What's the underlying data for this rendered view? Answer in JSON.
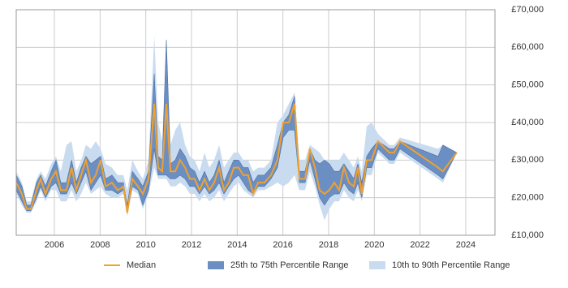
{
  "chart_data": {
    "type": "band-line",
    "x": [
      2004.33,
      2004.58,
      2004.79,
      2004.97,
      2005.22,
      2005.4,
      2005.61,
      2005.86,
      2006.07,
      2006.28,
      2006.53,
      2006.75,
      2006.96,
      2007.17,
      2007.38,
      2007.6,
      2007.81,
      2008.02,
      2008.24,
      2008.52,
      2008.77,
      2009.02,
      2009.19,
      2009.41,
      2009.66,
      2009.87,
      2010.12,
      2010.37,
      2010.54,
      2010.72,
      2010.9,
      2011.08,
      2011.29,
      2011.5,
      2011.72,
      2011.93,
      2012.14,
      2012.35,
      2012.57,
      2012.78,
      2012.99,
      2013.21,
      2013.42,
      2013.63,
      2013.85,
      2014.06,
      2014.27,
      2014.48,
      2014.7,
      2014.91,
      2015.19,
      2015.48,
      2015.76,
      2016.01,
      2016.26,
      2016.51,
      2016.72,
      2016.97,
      2017.18,
      2017.4,
      2017.61,
      2017.82,
      2018.03,
      2018.25,
      2018.46,
      2018.67,
      2018.89,
      2019.1,
      2019.28,
      2019.45,
      2019.67,
      2019.88,
      2020.16,
      2020.66,
      2020.87,
      2021.12,
      2022.79,
      2023.0,
      2023.61
    ],
    "series": [
      {
        "name": "Median",
        "color": "#f0a030",
        "values": [
          24000,
          21000,
          17000,
          17000,
          22000,
          25000,
          21000,
          25000,
          27000,
          22000,
          22000,
          28000,
          22000,
          26000,
          30000,
          24000,
          26000,
          30000,
          23000,
          24000,
          22000,
          23000,
          16000,
          25000,
          23000,
          21000,
          25000,
          45000,
          28000,
          27000,
          45000,
          27000,
          27000,
          30000,
          28000,
          25000,
          25000,
          22000,
          25000,
          22000,
          24000,
          28000,
          22000,
          24000,
          28000,
          28000,
          26000,
          26000,
          21000,
          24000,
          24000,
          26000,
          30000,
          40000,
          40000,
          45000,
          25000,
          25000,
          33000,
          28000,
          22000,
          21000,
          22000,
          24000,
          22000,
          28000,
          24000,
          23000,
          28000,
          21000,
          30000,
          30000,
          35000,
          32000,
          32000,
          35000,
          28000,
          27000,
          32000
        ]
      }
    ],
    "bands": [
      {
        "name": "25th to 75th Percentile Range",
        "color": "#6b8fc2",
        "lower": [
          22000,
          19000,
          16500,
          16500,
          20000,
          23000,
          20000,
          23000,
          24000,
          21000,
          21000,
          24000,
          21000,
          24000,
          27000,
          22000,
          24000,
          26000,
          22000,
          22000,
          21000,
          22000,
          16000,
          23000,
          22000,
          18000,
          22000,
          33000,
          26000,
          26000,
          26000,
          25000,
          25000,
          26000,
          25000,
          23000,
          23000,
          21000,
          23000,
          21000,
          22000,
          24000,
          21000,
          23000,
          25000,
          26000,
          24000,
          22000,
          21000,
          23000,
          23000,
          25000,
          28000,
          36000,
          38000,
          38000,
          24000,
          24000,
          30000,
          25000,
          20000,
          18000,
          20000,
          21000,
          21000,
          24000,
          22000,
          21000,
          24000,
          20000,
          28000,
          28000,
          33000,
          30000,
          30000,
          33000,
          26000,
          25000,
          32000
        ],
        "upper": [
          26000,
          23000,
          18000,
          18000,
          24000,
          26000,
          23000,
          27000,
          30000,
          24000,
          24000,
          30000,
          24000,
          28000,
          31000,
          29000,
          30000,
          31000,
          25000,
          26000,
          24000,
          24000,
          18000,
          27000,
          25000,
          23000,
          27000,
          53000,
          31000,
          30000,
          62000,
          29000,
          30000,
          33000,
          31000,
          28000,
          27000,
          24000,
          27000,
          24000,
          26000,
          30000,
          24000,
          27000,
          30000,
          30000,
          28000,
          28000,
          24000,
          26000,
          26000,
          28000,
          34000,
          40000,
          42000,
          47000,
          27000,
          27000,
          33000,
          30000,
          29000,
          30000,
          29000,
          27000,
          27000,
          29000,
          27000,
          25000,
          29000,
          24000,
          31000,
          33000,
          35000,
          33000,
          33000,
          35000,
          31000,
          34000,
          32000
        ]
      },
      {
        "name": "10th to 90th Percentile Range",
        "color": "#c9dbef",
        "lower": [
          21000,
          18000,
          16000,
          16000,
          19000,
          22000,
          19000,
          22000,
          22000,
          19000,
          19000,
          22000,
          19000,
          21000,
          24000,
          21000,
          22000,
          23000,
          21000,
          20000,
          20000,
          21000,
          15000,
          22000,
          21000,
          17000,
          21000,
          28000,
          25000,
          25000,
          25000,
          23000,
          23000,
          24000,
          23000,
          21000,
          21000,
          19000,
          21000,
          19000,
          20000,
          22000,
          19000,
          21000,
          23000,
          24000,
          22000,
          21000,
          20000,
          22000,
          22000,
          23000,
          24000,
          23000,
          24000,
          26000,
          22000,
          22000,
          27000,
          23000,
          18000,
          14000,
          17000,
          19000,
          19000,
          22000,
          20000,
          19000,
          22000,
          19000,
          26000,
          26000,
          32000,
          29000,
          29000,
          32000,
          25000,
          24000,
          32000
        ],
        "upper": [
          27000,
          24000,
          19000,
          19000,
          25000,
          27000,
          25000,
          29000,
          31000,
          27000,
          34000,
          35000,
          27000,
          30000,
          34000,
          33000,
          35000,
          33000,
          29000,
          28000,
          26000,
          26000,
          22000,
          30000,
          27000,
          25000,
          30000,
          63000,
          40000,
          35000,
          62000,
          34000,
          38000,
          40000,
          34000,
          31000,
          30000,
          27000,
          32000,
          28000,
          30000,
          34000,
          28000,
          30000,
          32000,
          32000,
          30000,
          30000,
          27000,
          28000,
          28000,
          30000,
          40000,
          42000,
          45000,
          48000,
          30000,
          30000,
          34000,
          33000,
          32000,
          30000,
          30000,
          30000,
          30000,
          32000,
          30000,
          28000,
          31000,
          27000,
          39000,
          40000,
          37000,
          34000,
          34000,
          36000,
          33000,
          34000,
          32000
        ]
      }
    ],
    "xlim": [
      2004.33,
      2025.28
    ],
    "xticks": [
      2006,
      2008,
      2010,
      2012,
      2014,
      2016,
      2018,
      2020,
      2022,
      2024
    ],
    "ylim": [
      10000,
      70000
    ],
    "yticks": [
      {
        "value": 10000,
        "label": "£10,000"
      },
      {
        "value": 20000,
        "label": "£20,000"
      },
      {
        "value": 30000,
        "label": "£30,000"
      },
      {
        "value": 40000,
        "label": "£40,000"
      },
      {
        "value": 50000,
        "label": "£50,000"
      },
      {
        "value": 60000,
        "label": "£60,000"
      },
      {
        "value": 70000,
        "label": "£70,000"
      }
    ],
    "grid": true
  }
}
